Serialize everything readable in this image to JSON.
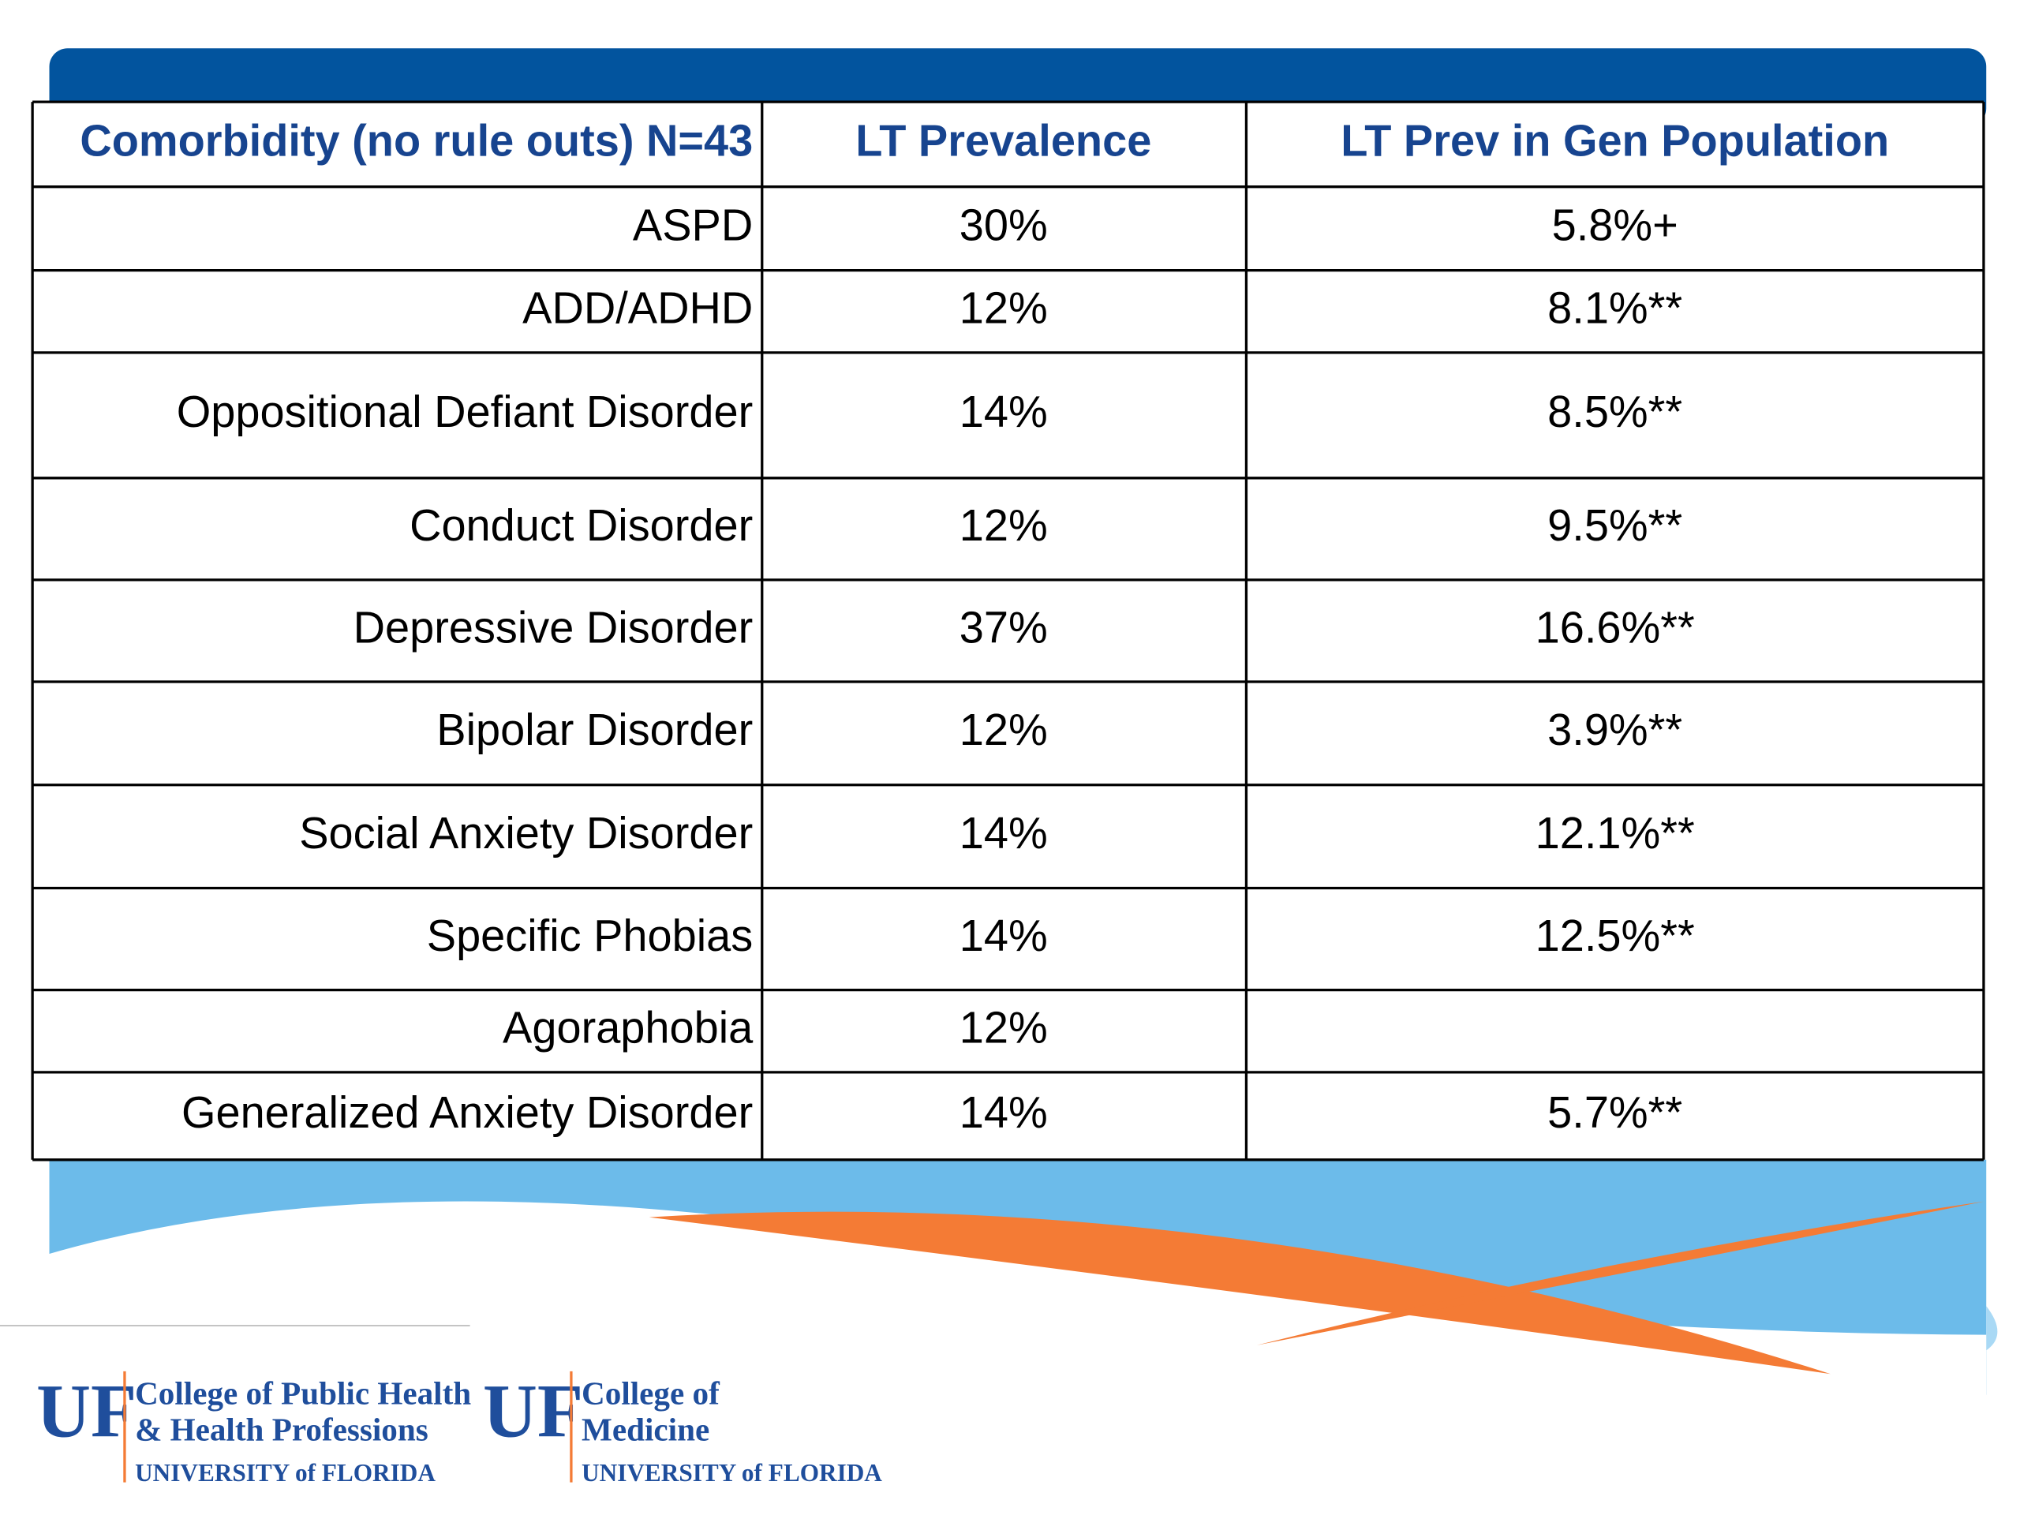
{
  "table": {
    "header": [
      "Comorbidity (no rule outs) N=43",
      "LT Prevalence",
      "LT Prev in Gen Population"
    ],
    "rows": [
      [
        "ASPD",
        "30%",
        "5.8%+"
      ],
      [
        "ADD/ADHD",
        "12%",
        "8.1%**"
      ],
      [
        "Oppositional Defiant Disorder",
        "14%",
        "8.5%**"
      ],
      [
        "Conduct Disorder",
        "12%",
        "9.5%**"
      ],
      [
        "Depressive Disorder",
        "37%",
        "16.6%**"
      ],
      [
        "Bipolar Disorder",
        "12%",
        "3.9%**"
      ],
      [
        "Social Anxiety Disorder",
        "14%",
        "12.1%**"
      ],
      [
        "Specific Phobias",
        "14%",
        "12.5%**"
      ],
      [
        "Agoraphobia",
        "12%",
        ""
      ],
      [
        "Generalized Anxiety Disorder",
        "14%",
        "5.7%**"
      ]
    ]
  },
  "footer": {
    "logos": [
      {
        "mark": "UF",
        "lines": [
          "College of Public Health",
          "& Health Professions"
        ],
        "university": "UNIVERSITY of FLORIDA"
      },
      {
        "mark": "UF",
        "lines": [
          "College of",
          "Medicine"
        ],
        "university": "UNIVERSITY of FLORIDA"
      }
    ]
  }
}
